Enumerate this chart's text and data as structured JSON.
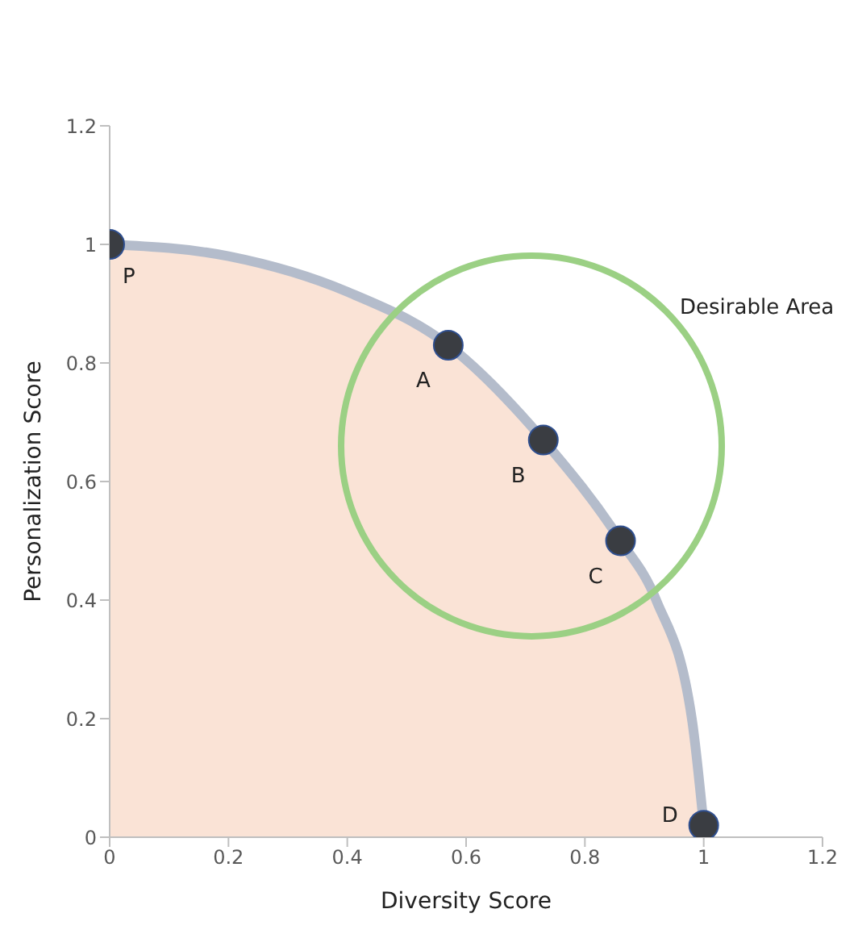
{
  "chart_data": {
    "type": "scatter",
    "xlabel": "Diversity Score",
    "ylabel": "Personalization Score",
    "xlim": [
      0,
      1.2
    ],
    "ylim": [
      0,
      1.2
    ],
    "xticks": [
      0,
      0.2,
      0.4,
      0.6,
      0.8,
      1,
      1.2
    ],
    "yticks": [
      0,
      0.2,
      0.4,
      0.6,
      0.8,
      1,
      1.2
    ],
    "grid": false,
    "legend": false,
    "annotations": [
      "Desirable Area"
    ],
    "series": [
      {
        "type": "area",
        "color": "#fae3d6",
        "x": [
          0,
          0.2,
          0.4,
          0.57,
          0.73,
          0.86,
          0.92,
          0.98,
          1
        ],
        "values": [
          1,
          0.98,
          0.92,
          0.83,
          0.67,
          0.5,
          0.4,
          0.2,
          0.02
        ]
      },
      {
        "color": "#3a3d42",
        "marker": "circle",
        "x": [
          0,
          0.57,
          0.73,
          0.86,
          1
        ],
        "values": [
          1,
          0.83,
          0.67,
          0.5,
          0.02
        ],
        "value_labels": [
          "P",
          "A",
          "B",
          "C",
          "D"
        ]
      }
    ]
  }
}
